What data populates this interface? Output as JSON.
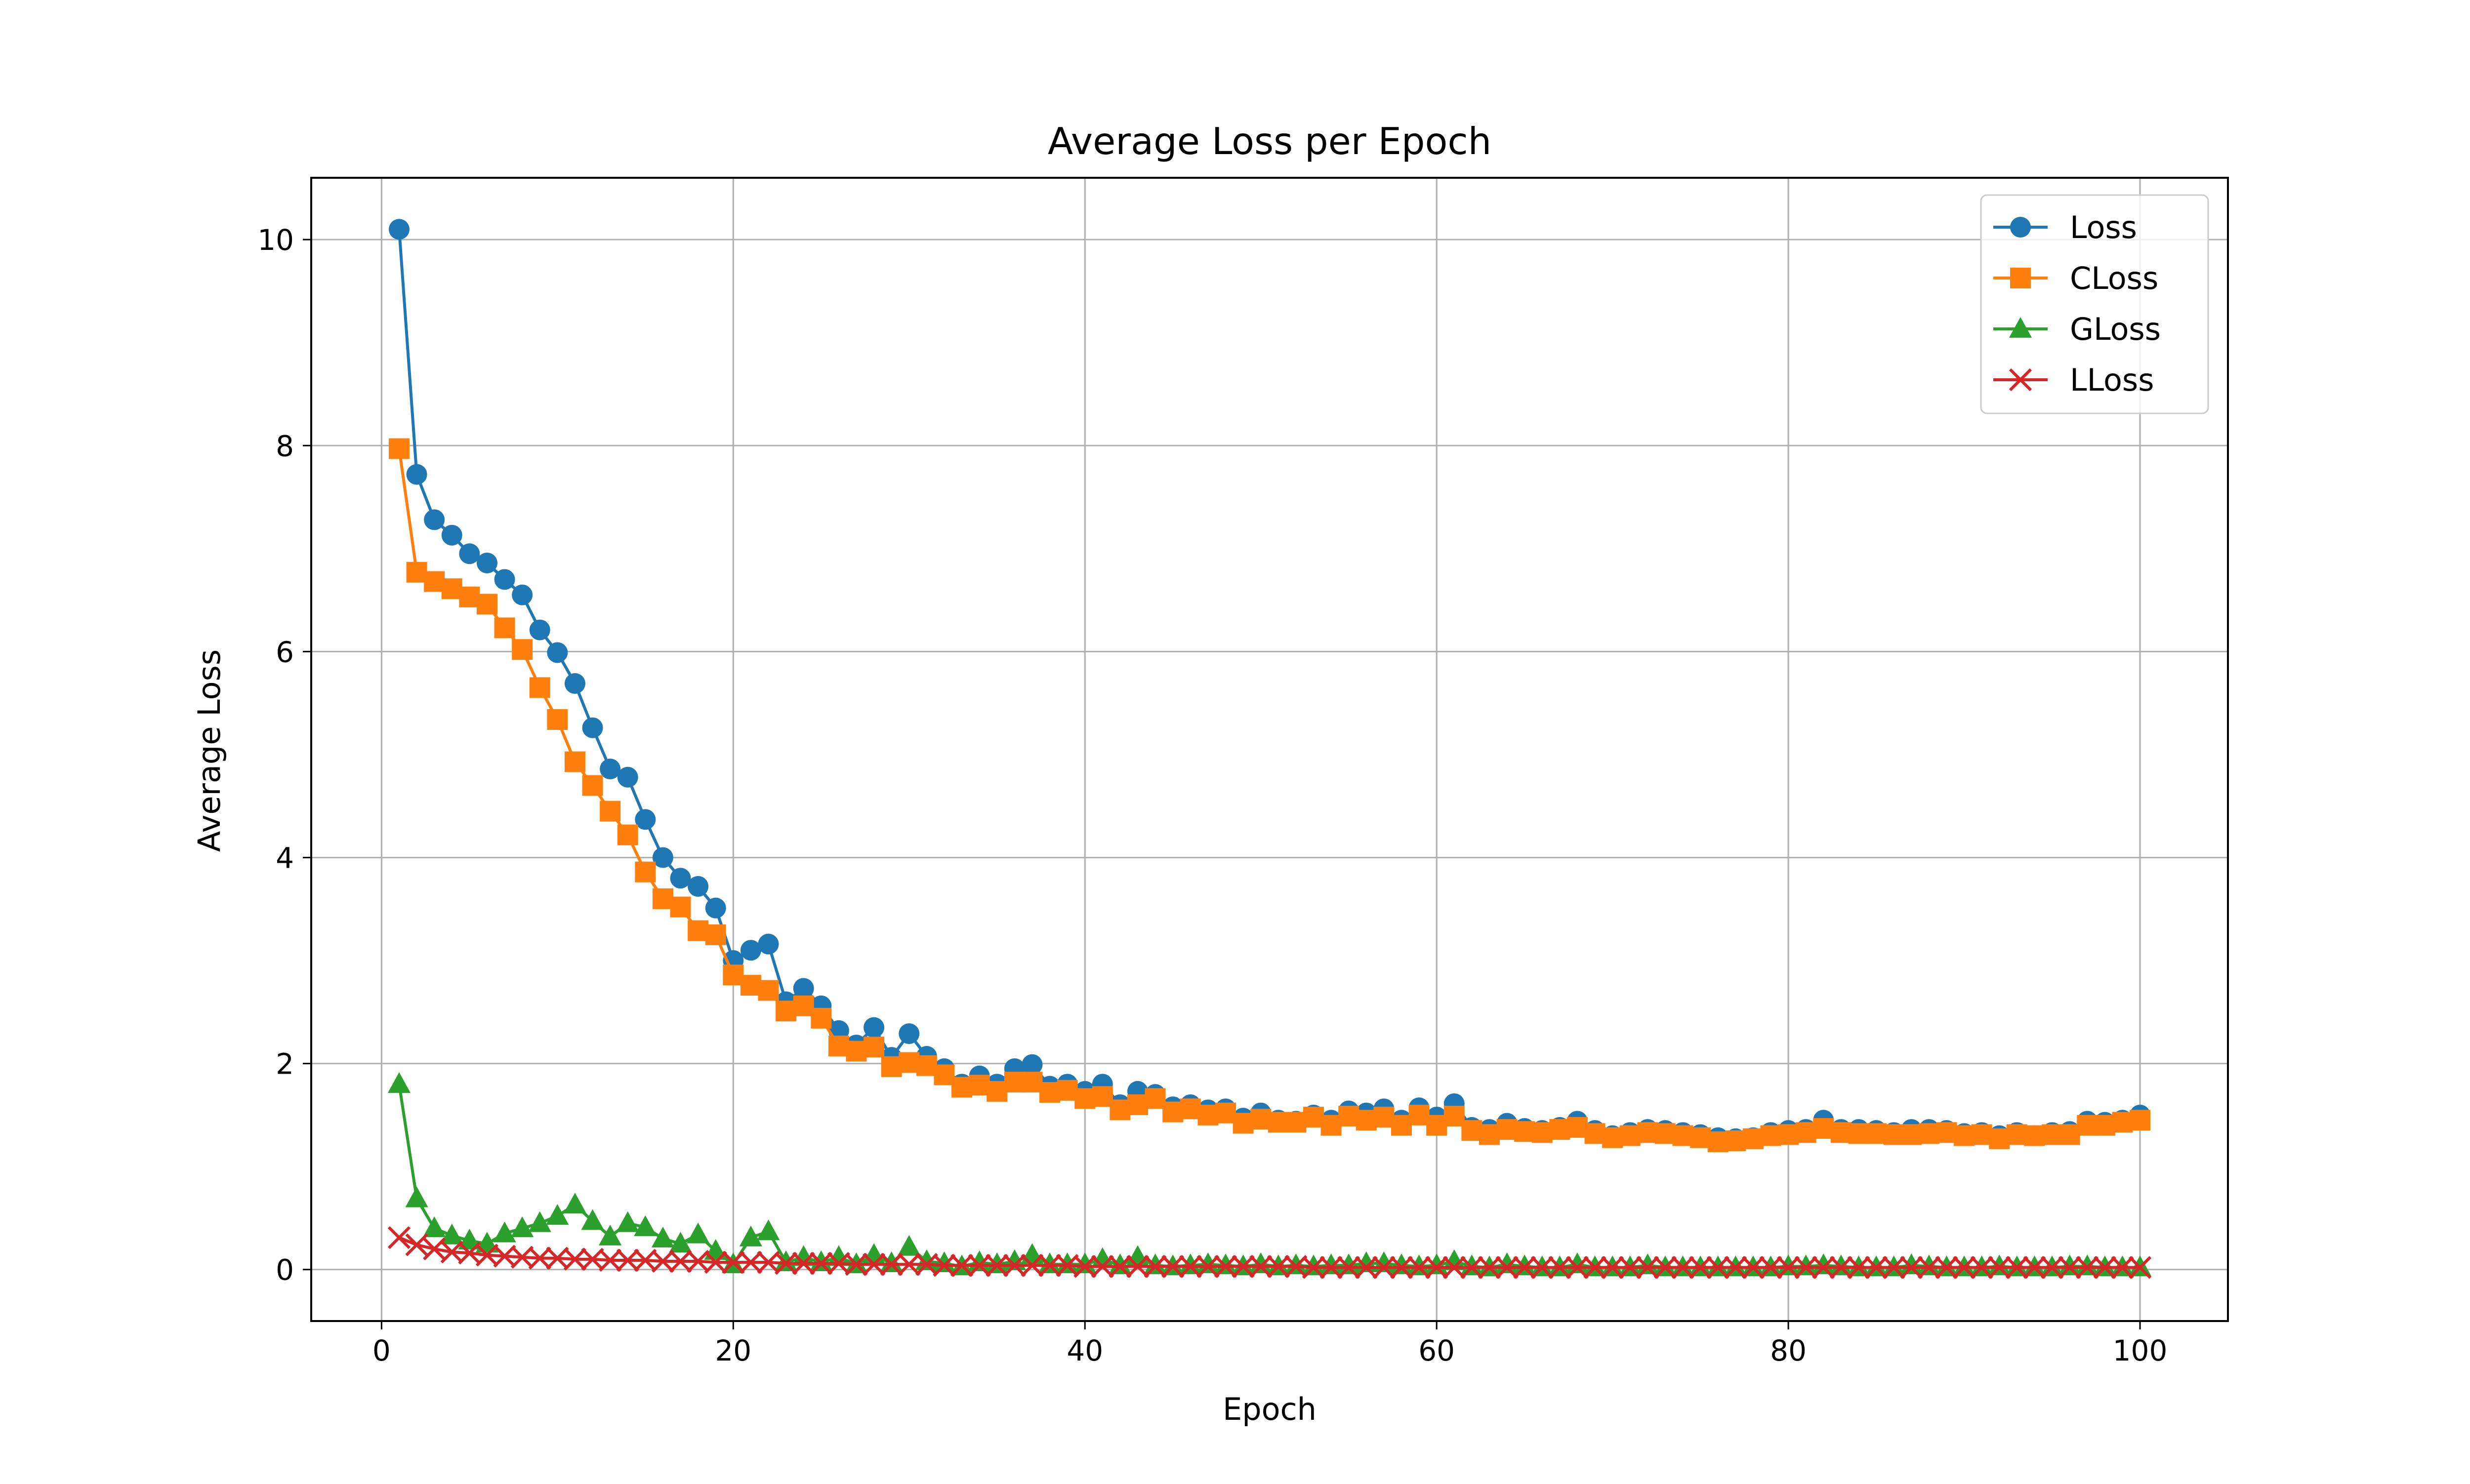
{
  "chart_data": {
    "type": "line",
    "title": "Average Loss per Epoch",
    "xlabel": "Epoch",
    "ylabel": "Average Loss",
    "xlim": [
      -4,
      105
    ],
    "ylim": [
      -0.5,
      10.6
    ],
    "xticks": [
      0,
      20,
      40,
      60,
      80,
      100
    ],
    "yticks": [
      0,
      2,
      4,
      6,
      8,
      10
    ],
    "grid": true,
    "legend_position": "top-right",
    "x": [
      1,
      2,
      3,
      4,
      5,
      6,
      7,
      8,
      9,
      10,
      11,
      12,
      13,
      14,
      15,
      16,
      17,
      18,
      19,
      20,
      21,
      22,
      23,
      24,
      25,
      26,
      27,
      28,
      29,
      30,
      31,
      32,
      33,
      34,
      35,
      36,
      37,
      38,
      39,
      40,
      41,
      42,
      43,
      44,
      45,
      46,
      47,
      48,
      49,
      50,
      51,
      52,
      53,
      54,
      55,
      56,
      57,
      58,
      59,
      60,
      61,
      62,
      63,
      64,
      65,
      66,
      67,
      68,
      69,
      70,
      71,
      72,
      73,
      74,
      75,
      76,
      77,
      78,
      79,
      80,
      81,
      82,
      83,
      84,
      85,
      86,
      87,
      88,
      89,
      90,
      91,
      92,
      93,
      94,
      95,
      96,
      97,
      98,
      99,
      100
    ],
    "series": [
      {
        "name": "Loss",
        "color": "#1f77b4",
        "marker": "circle",
        "values": [
          10.1,
          7.72,
          7.28,
          7.13,
          6.95,
          6.86,
          6.7,
          6.55,
          6.21,
          5.99,
          5.69,
          5.26,
          4.86,
          4.78,
          4.37,
          4.0,
          3.8,
          3.72,
          3.51,
          3.0,
          3.1,
          3.16,
          2.6,
          2.73,
          2.56,
          2.32,
          2.18,
          2.35,
          2.06,
          2.29,
          2.07,
          1.95,
          1.8,
          1.88,
          1.8,
          1.95,
          1.99,
          1.78,
          1.8,
          1.73,
          1.8,
          1.6,
          1.73,
          1.7,
          1.58,
          1.6,
          1.55,
          1.56,
          1.47,
          1.52,
          1.45,
          1.44,
          1.5,
          1.45,
          1.54,
          1.52,
          1.56,
          1.45,
          1.57,
          1.48,
          1.61,
          1.38,
          1.36,
          1.42,
          1.37,
          1.35,
          1.38,
          1.44,
          1.35,
          1.3,
          1.33,
          1.36,
          1.35,
          1.33,
          1.31,
          1.28,
          1.27,
          1.28,
          1.33,
          1.35,
          1.36,
          1.45,
          1.36,
          1.36,
          1.35,
          1.33,
          1.36,
          1.36,
          1.35,
          1.32,
          1.33,
          1.3,
          1.33,
          1.3,
          1.33,
          1.34,
          1.44,
          1.43,
          1.45,
          1.5
        ]
      },
      {
        "name": "CLoss",
        "color": "#ff7f0e",
        "marker": "square",
        "values": [
          7.97,
          6.77,
          6.68,
          6.61,
          6.53,
          6.46,
          6.23,
          6.02,
          5.65,
          5.34,
          4.93,
          4.7,
          4.45,
          4.22,
          3.86,
          3.6,
          3.52,
          3.29,
          3.25,
          2.86,
          2.76,
          2.71,
          2.51,
          2.56,
          2.44,
          2.17,
          2.12,
          2.16,
          1.97,
          2.01,
          1.98,
          1.89,
          1.77,
          1.79,
          1.73,
          1.82,
          1.82,
          1.72,
          1.74,
          1.66,
          1.68,
          1.55,
          1.6,
          1.66,
          1.53,
          1.56,
          1.5,
          1.52,
          1.42,
          1.46,
          1.43,
          1.43,
          1.48,
          1.4,
          1.49,
          1.45,
          1.48,
          1.4,
          1.5,
          1.4,
          1.49,
          1.35,
          1.31,
          1.36,
          1.34,
          1.33,
          1.36,
          1.38,
          1.32,
          1.28,
          1.3,
          1.33,
          1.32,
          1.3,
          1.28,
          1.24,
          1.25,
          1.27,
          1.3,
          1.31,
          1.33,
          1.37,
          1.33,
          1.32,
          1.32,
          1.31,
          1.31,
          1.32,
          1.33,
          1.3,
          1.31,
          1.27,
          1.31,
          1.3,
          1.31,
          1.31,
          1.4,
          1.4,
          1.43,
          1.45
        ]
      },
      {
        "name": "GLoss",
        "color": "#2ca02c",
        "marker": "triangle",
        "values": [
          1.8,
          0.69,
          0.4,
          0.33,
          0.28,
          0.25,
          0.35,
          0.4,
          0.45,
          0.52,
          0.63,
          0.47,
          0.32,
          0.45,
          0.41,
          0.3,
          0.25,
          0.34,
          0.18,
          0.05,
          0.31,
          0.37,
          0.07,
          0.12,
          0.07,
          0.12,
          0.05,
          0.14,
          0.06,
          0.22,
          0.08,
          0.06,
          0.03,
          0.07,
          0.05,
          0.08,
          0.14,
          0.05,
          0.05,
          0.05,
          0.1,
          0.04,
          0.12,
          0.04,
          0.03,
          0.04,
          0.05,
          0.04,
          0.03,
          0.05,
          0.03,
          0.04,
          0.03,
          0.04,
          0.04,
          0.06,
          0.06,
          0.04,
          0.03,
          0.04,
          0.08,
          0.03,
          0.02,
          0.05,
          0.03,
          0.02,
          0.02,
          0.05,
          0.02,
          0.02,
          0.02,
          0.04,
          0.02,
          0.02,
          0.02,
          0.02,
          0.02,
          0.02,
          0.02,
          0.03,
          0.03,
          0.04,
          0.03,
          0.02,
          0.02,
          0.02,
          0.04,
          0.03,
          0.02,
          0.02,
          0.02,
          0.03,
          0.02,
          0.02,
          0.02,
          0.03,
          0.03,
          0.02,
          0.02,
          0.02
        ]
      },
      {
        "name": "LLoss",
        "color": "#d62728",
        "marker": "x",
        "values": [
          0.31,
          0.24,
          0.2,
          0.17,
          0.16,
          0.14,
          0.13,
          0.12,
          0.11,
          0.11,
          0.1,
          0.1,
          0.09,
          0.09,
          0.09,
          0.08,
          0.08,
          0.08,
          0.07,
          0.07,
          0.07,
          0.07,
          0.06,
          0.06,
          0.06,
          0.06,
          0.05,
          0.05,
          0.05,
          0.05,
          0.05,
          0.04,
          0.04,
          0.04,
          0.04,
          0.04,
          0.04,
          0.04,
          0.04,
          0.03,
          0.03,
          0.03,
          0.03,
          0.03,
          0.03,
          0.03,
          0.03,
          0.03,
          0.03,
          0.03,
          0.03,
          0.03,
          0.02,
          0.02,
          0.02,
          0.02,
          0.02,
          0.02,
          0.02,
          0.02,
          0.02,
          0.02,
          0.02,
          0.02,
          0.02,
          0.02,
          0.02,
          0.02,
          0.02,
          0.02,
          0.02,
          0.02,
          0.02,
          0.02,
          0.02,
          0.02,
          0.02,
          0.02,
          0.02,
          0.02,
          0.02,
          0.02,
          0.02,
          0.02,
          0.02,
          0.02,
          0.02,
          0.02,
          0.02,
          0.02,
          0.02,
          0.02,
          0.02,
          0.02,
          0.02,
          0.02,
          0.02,
          0.02,
          0.02,
          0.02
        ]
      }
    ]
  }
}
